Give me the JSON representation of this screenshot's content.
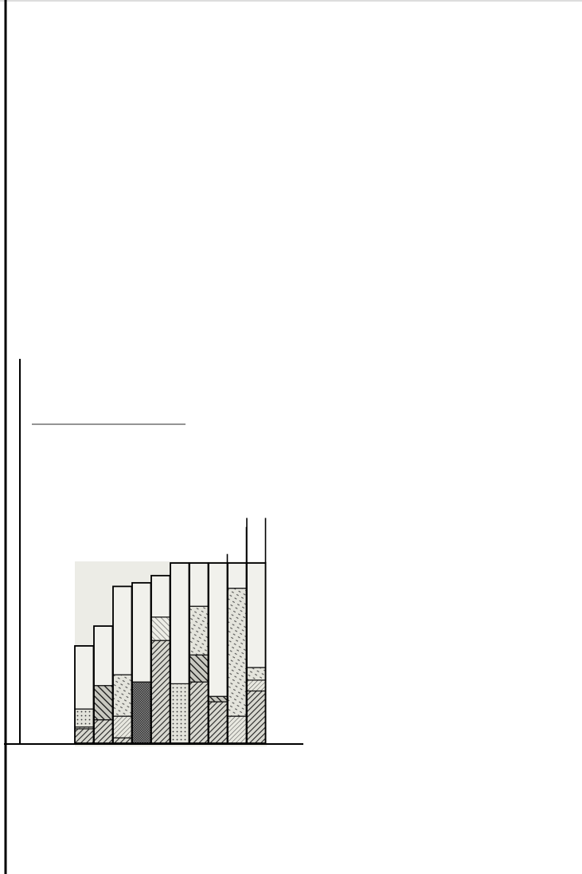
{
  "chart_data": {
    "type": "bar",
    "stacked": true,
    "title": "",
    "xlabel": "",
    "ylabel": "",
    "legend": "none",
    "grid": false,
    "categories": [
      "",
      "",
      "",
      "",
      "",
      "",
      "",
      "",
      "",
      ""
    ],
    "ylim": [
      0,
      100
    ],
    "totals": [
      54,
      65,
      87,
      89,
      93,
      100,
      100,
      100,
      100,
      100
    ],
    "series": [
      {
        "name": "",
        "pattern": "dense-hatch",
        "values": [
          8,
          13,
          3,
          0,
          57,
          0,
          34,
          23,
          0,
          29
        ]
      },
      {
        "name": "",
        "pattern": "fine-hatch",
        "values": [
          1,
          0,
          12,
          0,
          0,
          0,
          0,
          0,
          15,
          6
        ]
      },
      {
        "name": "",
        "pattern": "dots",
        "values": [
          10,
          0,
          0,
          0,
          0,
          33,
          0,
          0,
          0,
          0
        ]
      },
      {
        "name": "",
        "pattern": "coarse-hatch",
        "values": [
          0,
          19,
          0,
          0,
          0,
          0,
          15,
          3,
          0,
          0
        ]
      },
      {
        "name": "",
        "pattern": "light-dash",
        "values": [
          0,
          0,
          23,
          0,
          0,
          0,
          0,
          0,
          71,
          7
        ]
      },
      {
        "name": "",
        "pattern": "dense-check",
        "values": [
          0,
          0,
          0,
          34,
          0,
          0,
          0,
          0,
          0,
          0
        ]
      },
      {
        "name": "",
        "pattern": "hatch-light",
        "values": [
          0,
          0,
          0,
          0,
          13,
          0,
          0,
          0,
          0,
          0
        ]
      },
      {
        "name": "",
        "pattern": "light-dash",
        "values": [
          0,
          0,
          0,
          0,
          0,
          0,
          27,
          0,
          0,
          0
        ]
      },
      {
        "name": "",
        "pattern": "plain",
        "values": [
          35,
          33,
          49,
          55,
          23,
          67,
          24,
          74,
          14,
          58
        ]
      }
    ],
    "overflow_lines": [
      0,
      0,
      0,
      0,
      0,
      0,
      0,
      105,
      120,
      125
    ]
  }
}
